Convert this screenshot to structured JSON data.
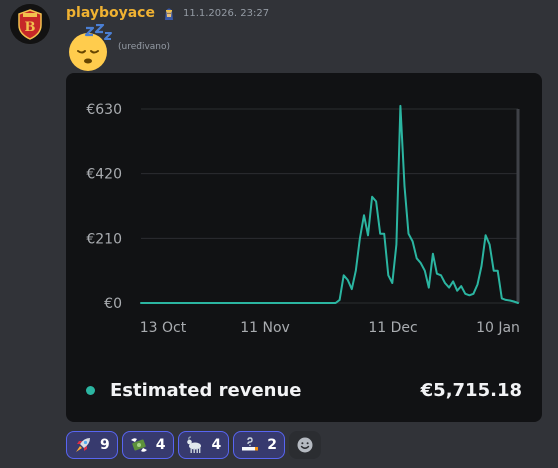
{
  "message": {
    "username": "playboyace",
    "timestamp": "11.1.2026. 23:27",
    "edited_label": "(uređivano)",
    "avatar_icon": "shield-b-logo",
    "role_icon": "pharaoh-icon",
    "content_emoji": "sleeping-face-emoji"
  },
  "chart_card": {
    "legend_label": "Estimated revenue",
    "total_value": "€5,715.18",
    "series_color": "#2bb5a1"
  },
  "chart_data": {
    "type": "line",
    "title": "",
    "xlabel": "",
    "ylabel": "",
    "x_tick_labels": [
      "13 Oct",
      "11 Nov",
      "11 Dec",
      "10 Jan"
    ],
    "y_tick_labels": [
      "€0",
      "€210",
      "€420",
      "€630"
    ],
    "ylim": [
      0,
      630
    ],
    "grid": true,
    "start_date": "2025-10-13",
    "end_date": "2026-01-11",
    "series": [
      {
        "name": "Estimated revenue",
        "values": [
          0,
          0,
          0,
          0,
          0,
          0,
          0,
          0,
          0,
          0,
          0,
          0,
          0,
          0,
          0,
          0,
          0,
          0,
          0,
          0,
          0,
          0,
          0,
          0,
          0,
          0,
          0,
          0,
          0,
          0,
          0,
          0,
          0,
          0,
          0,
          0,
          0,
          0,
          0,
          0,
          0,
          0,
          0,
          0,
          0,
          0,
          0,
          0,
          0,
          10,
          90,
          75,
          45,
          105,
          210,
          285,
          220,
          345,
          330,
          225,
          225,
          90,
          65,
          190,
          640,
          380,
          225,
          200,
          145,
          130,
          105,
          50,
          160,
          95,
          90,
          65,
          50,
          70,
          40,
          55,
          30,
          25,
          30,
          60,
          120,
          220,
          190,
          105,
          105,
          15,
          10,
          8,
          5,
          0
        ]
      }
    ]
  },
  "reactions": [
    {
      "icon": "rocket-emoji",
      "count": "9"
    },
    {
      "icon": "money-with-wings-emoji",
      "count": "4"
    },
    {
      "icon": "goat-emoji",
      "count": "4"
    },
    {
      "icon": "cigarette-question-emoji",
      "count": "2"
    }
  ],
  "add_reaction_icon": "add-reaction-smiley-icon"
}
